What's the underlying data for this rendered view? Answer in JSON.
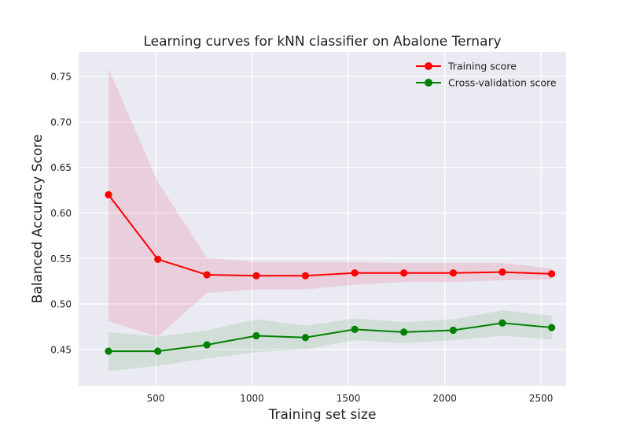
{
  "chart_data": {
    "type": "line",
    "title": "Learning curves for kNN classifier on Abalone Ternary",
    "xlabel": "Training set size",
    "ylabel": "Balanced Accuracy Score",
    "xlim": [
      100,
      2630
    ],
    "ylim": [
      0.41,
      0.777
    ],
    "xticks": [
      500,
      1000,
      1500,
      2000,
      2500
    ],
    "yticks": [
      0.45,
      0.5,
      0.55,
      0.6,
      0.65,
      0.7,
      0.75
    ],
    "xtick_labels": [
      "500",
      "1000",
      "1500",
      "2000",
      "2500"
    ],
    "ytick_labels": [
      "0.45",
      "0.50",
      "0.55",
      "0.60",
      "0.65",
      "0.70",
      "0.75"
    ],
    "grid": true,
    "legend_position": "top-right",
    "x": [
      255,
      511,
      766,
      1022,
      1277,
      1533,
      1788,
      2044,
      2299,
      2555
    ],
    "series": [
      {
        "name": "Training score",
        "color": "#ff0000",
        "band_color": "#dc143c",
        "values": [
          0.62,
          0.549,
          0.532,
          0.531,
          0.531,
          0.534,
          0.534,
          0.534,
          0.535,
          0.533
        ],
        "lower": [
          0.481,
          0.464,
          0.512,
          0.516,
          0.516,
          0.521,
          0.524,
          0.524,
          0.526,
          0.527
        ],
        "upper": [
          0.759,
          0.634,
          0.551,
          0.546,
          0.546,
          0.546,
          0.545,
          0.545,
          0.545,
          0.539
        ]
      },
      {
        "name": "Cross-validation score",
        "color": "#008000",
        "band_color": "#228b22",
        "values": [
          0.448,
          0.448,
          0.455,
          0.465,
          0.463,
          0.472,
          0.469,
          0.471,
          0.479,
          0.474
        ],
        "lower": [
          0.426,
          0.432,
          0.44,
          0.447,
          0.45,
          0.46,
          0.457,
          0.46,
          0.465,
          0.461
        ],
        "upper": [
          0.469,
          0.464,
          0.471,
          0.483,
          0.476,
          0.484,
          0.48,
          0.483,
          0.493,
          0.487
        ]
      }
    ]
  }
}
